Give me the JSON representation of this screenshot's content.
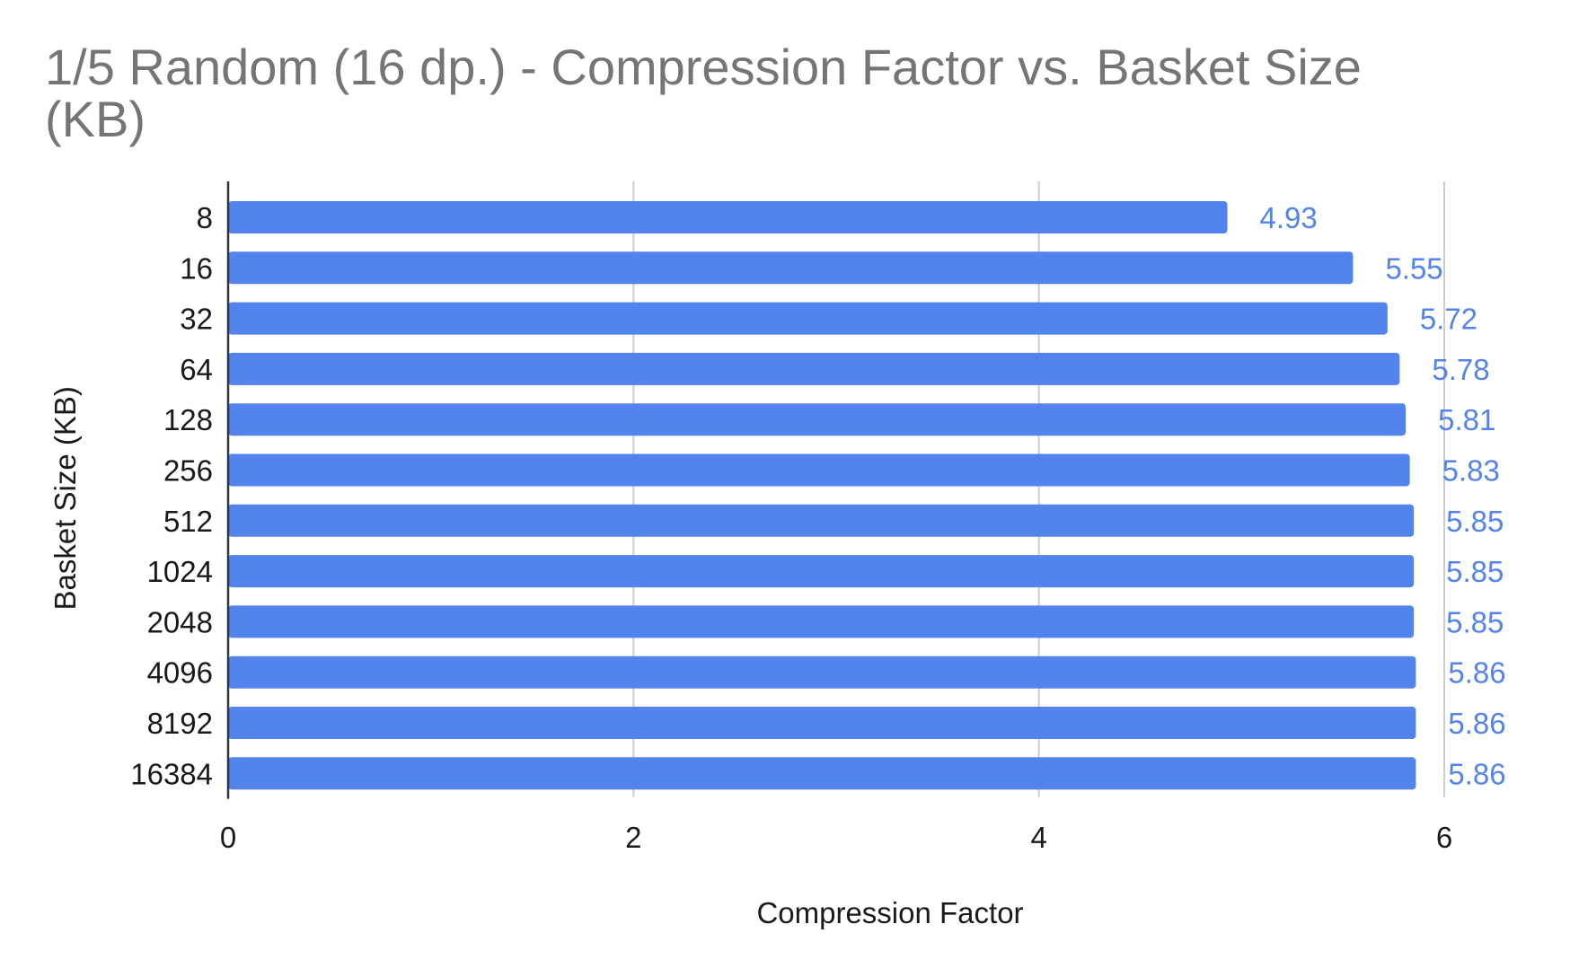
{
  "chart_data": {
    "type": "bar",
    "orientation": "horizontal",
    "title": "1/5 Random (16 dp.) - Compression Factor vs. Basket Size (KB)",
    "xlabel": "Compression Factor",
    "ylabel": "Basket Size (KB)",
    "categories": [
      "8",
      "16",
      "32",
      "64",
      "128",
      "256",
      "512",
      "1024",
      "2048",
      "4096",
      "8192",
      "16384"
    ],
    "values": [
      4.93,
      5.55,
      5.72,
      5.78,
      5.81,
      5.83,
      5.85,
      5.85,
      5.85,
      5.86,
      5.86,
      5.86
    ],
    "data_labels": [
      "4.93",
      "5.55",
      "5.72",
      "5.78",
      "5.81",
      "5.83",
      "5.85",
      "5.85",
      "5.85",
      "5.86",
      "5.86",
      "5.86"
    ],
    "xlim": [
      0,
      6
    ],
    "xticks": [
      "0",
      "2",
      "4",
      "6"
    ],
    "grid": true,
    "legend": "none",
    "colors": {
      "bar": "#5383ec",
      "data_label": "#5383ec",
      "title": "#757575",
      "grid": "#cccccc"
    }
  }
}
